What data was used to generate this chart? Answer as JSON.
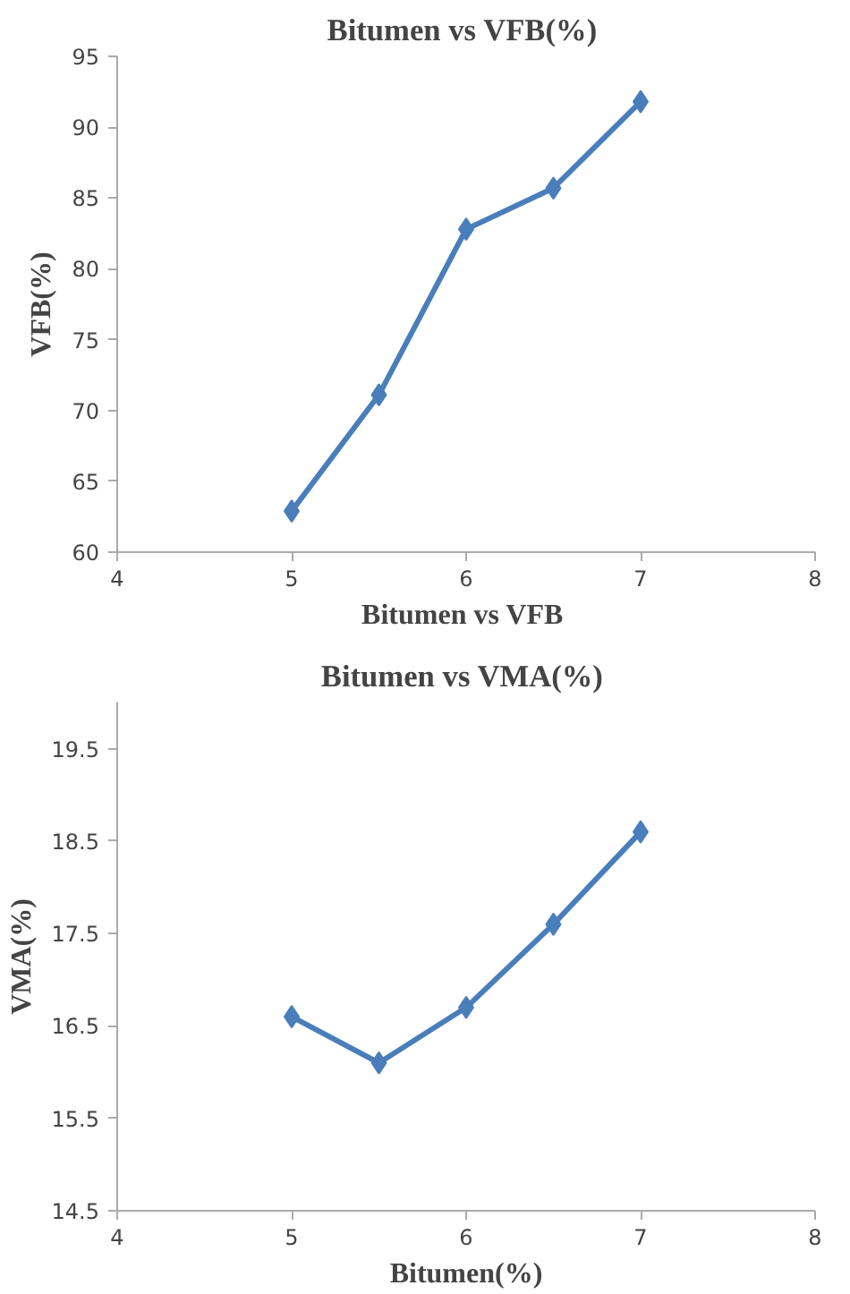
{
  "chart_data": [
    {
      "type": "line",
      "title": "Bitumen  vs VFB(%)",
      "xlabel": "Bitumen  vs VFB",
      "ylabel": "VFB(%)",
      "x": [
        5,
        5.5,
        6,
        6.5,
        7
      ],
      "series": [
        {
          "color": "#4a7ebb",
          "values": [
            62.9,
            71.1,
            82.8,
            85.7,
            91.8
          ]
        }
      ],
      "xlim": [
        4,
        8
      ],
      "xticks": [
        4,
        5,
        6,
        7,
        8
      ],
      "ylim": [
        60,
        95
      ],
      "yticks": [
        60,
        65,
        70,
        75,
        80,
        85,
        90,
        95
      ],
      "grid": false,
      "marker": "diamond",
      "line_style": "solid"
    },
    {
      "type": "line",
      "title": "Bitumen  vs VMA(%)",
      "xlabel": "Bitumen(%)",
      "ylabel": "VMA(%)",
      "x": [
        5,
        5.5,
        6,
        6.5,
        7
      ],
      "series": [
        {
          "color": "#4a7ebb",
          "values": [
            16.6,
            16.1,
            16.7,
            17.6,
            18.6
          ]
        }
      ],
      "xlim": [
        4,
        8
      ],
      "xticks": [
        4,
        5,
        6,
        7,
        8
      ],
      "ylim": [
        14.5,
        20
      ],
      "yticks": [
        14.5,
        15.5,
        16.5,
        17.5,
        18.5,
        19.5
      ],
      "grid": false,
      "marker": "diamond",
      "line_style": "solid"
    }
  ]
}
